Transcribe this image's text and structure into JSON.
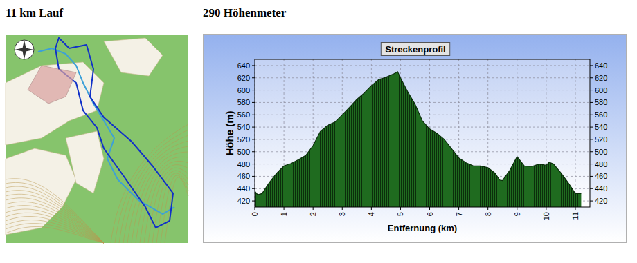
{
  "headings": [
    "11 km Lauf",
    "290 Höhenmeter"
  ],
  "chart_data": {
    "type": "area",
    "title": "Streckenprofil",
    "x_label": "Entfernung (km)",
    "y_label": "Höhe (m)",
    "color": "#1f6b1f",
    "grid": true,
    "x": [
      0,
      0.1,
      0.25,
      0.5,
      0.75,
      1,
      1.25,
      1.5,
      1.75,
      2,
      2.25,
      2.5,
      2.75,
      3,
      3.25,
      3.5,
      3.75,
      4,
      4.25,
      4.5,
      4.75,
      4.9,
      5,
      5.25,
      5.5,
      5.75,
      6,
      6.25,
      6.5,
      6.75,
      7,
      7.25,
      7.5,
      7.75,
      8,
      8.25,
      8.4,
      8.5,
      8.75,
      9,
      9.25,
      9.5,
      9.75,
      10,
      10.1,
      10.25,
      10.5,
      10.75,
      11,
      11.2
    ],
    "values": [
      436,
      430,
      432,
      450,
      465,
      477,
      481,
      487,
      494,
      510,
      533,
      543,
      548,
      560,
      572,
      585,
      595,
      607,
      617,
      621,
      626,
      630,
      620,
      597,
      577,
      550,
      537,
      530,
      520,
      505,
      490,
      482,
      477,
      477,
      474,
      465,
      454,
      453,
      470,
      492,
      477,
      476,
      480,
      478,
      483,
      480,
      466,
      450,
      432,
      432
    ],
    "xlim": [
      0,
      11.5
    ],
    "xticks": [
      0,
      1,
      2,
      3,
      4,
      5,
      6,
      7,
      8,
      9,
      10,
      11
    ],
    "ylim": [
      410,
      650
    ],
    "yticks": [
      420,
      440,
      460,
      480,
      500,
      520,
      540,
      560,
      580,
      600,
      620,
      640
    ]
  }
}
